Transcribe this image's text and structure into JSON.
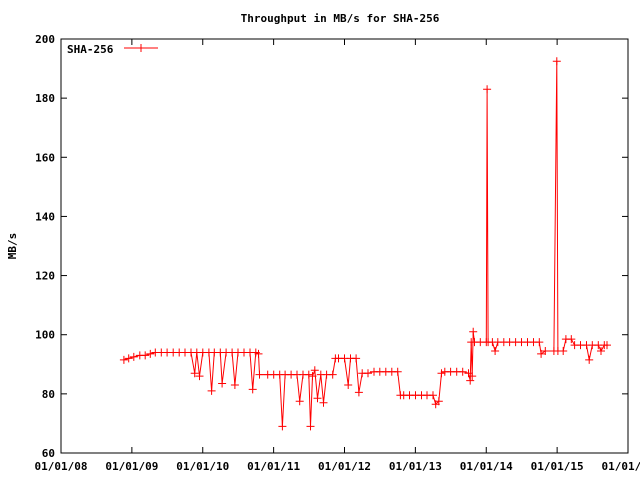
{
  "chart_data": {
    "type": "line",
    "title": "Throughput in MB/s for SHA-256",
    "xlabel": "",
    "ylabel": "MB/s",
    "x_scale": "date",
    "xlim": [
      "2008-01-01",
      "2016-01-01"
    ],
    "ylim": [
      60,
      200
    ],
    "x_ticks": [
      "01/01/08",
      "01/01/09",
      "01/01/10",
      "01/01/11",
      "01/01/12",
      "01/01/13",
      "01/01/14",
      "01/01/15",
      "01/01/16"
    ],
    "y_ticks": [
      60,
      80,
      100,
      120,
      140,
      160,
      180,
      200
    ],
    "grid": false,
    "legend_position": "top-left",
    "marker": "plus",
    "series": [
      {
        "name": "SHA-256",
        "color": "#ff0000",
        "points": [
          [
            "2008-11-20",
            91.5
          ],
          [
            "2008-12-15",
            92
          ],
          [
            "2009-01-10",
            92.5
          ],
          [
            "2009-02-10",
            93
          ],
          [
            "2009-03-10",
            93
          ],
          [
            "2009-04-05",
            93.5
          ],
          [
            "2009-05-01",
            94
          ],
          [
            "2009-06-01",
            94
          ],
          [
            "2009-07-01",
            94
          ],
          [
            "2009-08-01",
            94
          ],
          [
            "2009-09-01",
            94
          ],
          [
            "2009-10-01",
            94
          ],
          [
            "2009-11-01",
            94
          ],
          [
            "2009-11-20",
            87
          ],
          [
            "2009-12-01",
            94
          ],
          [
            "2009-12-15",
            86
          ],
          [
            "2010-01-01",
            94
          ],
          [
            "2010-02-01",
            94
          ],
          [
            "2010-02-15",
            81
          ],
          [
            "2010-03-01",
            94
          ],
          [
            "2010-04-01",
            94
          ],
          [
            "2010-04-10",
            83.5
          ],
          [
            "2010-05-01",
            94
          ],
          [
            "2010-06-01",
            94
          ],
          [
            "2010-06-15",
            83
          ],
          [
            "2010-07-01",
            94
          ],
          [
            "2010-08-01",
            94
          ],
          [
            "2010-09-01",
            94
          ],
          [
            "2010-09-15",
            81.5
          ],
          [
            "2010-10-01",
            94
          ],
          [
            "2010-10-15",
            93.5
          ],
          [
            "2010-10-20",
            86.5
          ],
          [
            "2010-12-01",
            86.5
          ],
          [
            "2011-01-01",
            86.5
          ],
          [
            "2011-02-01",
            86.5
          ],
          [
            "2011-02-15",
            69
          ],
          [
            "2011-03-01",
            86.5
          ],
          [
            "2011-04-01",
            86.5
          ],
          [
            "2011-05-01",
            86.5
          ],
          [
            "2011-05-15",
            77.5
          ],
          [
            "2011-06-01",
            86.5
          ],
          [
            "2011-07-01",
            86.5
          ],
          [
            "2011-07-10",
            69
          ],
          [
            "2011-07-20",
            86
          ],
          [
            "2011-08-01",
            88
          ],
          [
            "2011-08-15",
            78.5
          ],
          [
            "2011-09-01",
            86.5
          ],
          [
            "2011-09-15",
            77
          ],
          [
            "2011-10-01",
            86.5
          ],
          [
            "2011-11-01",
            86.5
          ],
          [
            "2011-11-15",
            92
          ],
          [
            "2011-12-01",
            92
          ],
          [
            "2012-01-01",
            92
          ],
          [
            "2012-01-20",
            83
          ],
          [
            "2012-02-01",
            92
          ],
          [
            "2012-03-01",
            92
          ],
          [
            "2012-03-15",
            80.5
          ],
          [
            "2012-04-01",
            87
          ],
          [
            "2012-05-01",
            87
          ],
          [
            "2012-06-01",
            87.5
          ],
          [
            "2012-07-01",
            87.5
          ],
          [
            "2012-08-01",
            87.5
          ],
          [
            "2012-09-01",
            87.5
          ],
          [
            "2012-10-01",
            87.5
          ],
          [
            "2012-10-15",
            79.5
          ],
          [
            "2012-11-01",
            79.5
          ],
          [
            "2012-12-01",
            79.5
          ],
          [
            "2013-01-01",
            79.5
          ],
          [
            "2013-02-01",
            79.5
          ],
          [
            "2013-03-01",
            79.5
          ],
          [
            "2013-04-01",
            79.5
          ],
          [
            "2013-04-15",
            76.5
          ],
          [
            "2013-05-01",
            77.5
          ],
          [
            "2013-05-15",
            87
          ],
          [
            "2013-06-01",
            87.5
          ],
          [
            "2013-07-01",
            87.5
          ],
          [
            "2013-08-01",
            87.5
          ],
          [
            "2013-09-01",
            87.5
          ],
          [
            "2013-10-01",
            87
          ],
          [
            "2013-10-10",
            84.5
          ],
          [
            "2013-10-15",
            97.5
          ],
          [
            "2013-10-20",
            86
          ],
          [
            "2013-10-25",
            101
          ],
          [
            "2013-11-01",
            97.5
          ],
          [
            "2013-12-01",
            97.5
          ],
          [
            "2014-01-01",
            97.5
          ],
          [
            "2014-01-05",
            183
          ],
          [
            "2014-01-10",
            97.5
          ],
          [
            "2014-02-01",
            97.5
          ],
          [
            "2014-02-15",
            94.5
          ],
          [
            "2014-03-01",
            97.5
          ],
          [
            "2014-04-01",
            97.5
          ],
          [
            "2014-05-01",
            97.5
          ],
          [
            "2014-06-01",
            97.5
          ],
          [
            "2014-07-01",
            97.5
          ],
          [
            "2014-08-01",
            97.5
          ],
          [
            "2014-09-01",
            97.5
          ],
          [
            "2014-10-01",
            97.5
          ],
          [
            "2014-10-10",
            93.5
          ],
          [
            "2014-11-01",
            94.5
          ],
          [
            "2014-12-15",
            94.5
          ],
          [
            "2014-12-30",
            192.5
          ],
          [
            "2015-01-05",
            94.5
          ],
          [
            "2015-02-01",
            94.5
          ],
          [
            "2015-02-15",
            98.5
          ],
          [
            "2015-03-15",
            98.5
          ],
          [
            "2015-04-01",
            96.5
          ],
          [
            "2015-05-01",
            96.5
          ],
          [
            "2015-06-01",
            96.5
          ],
          [
            "2015-06-15",
            91.5
          ],
          [
            "2015-07-01",
            96.5
          ],
          [
            "2015-08-01",
            96.5
          ],
          [
            "2015-08-15",
            94.5
          ],
          [
            "2015-09-01",
            96.5
          ],
          [
            "2015-09-15",
            96.5
          ]
        ]
      }
    ]
  }
}
